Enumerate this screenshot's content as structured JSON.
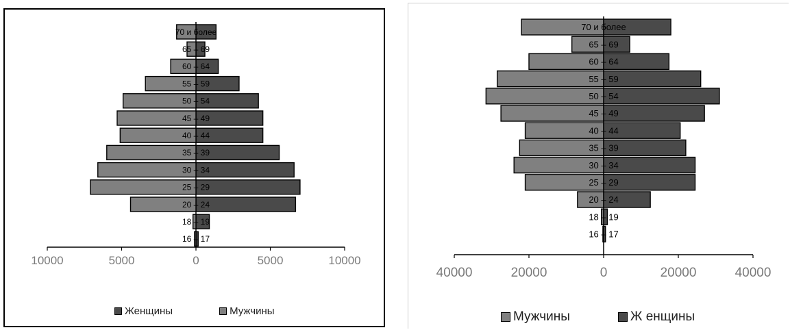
{
  "chart_data": [
    {
      "type": "bar",
      "orientation": "horizontal",
      "layout": "population-pyramid",
      "categories": [
        "70 и более",
        "65 – 69",
        "60 – 64",
        "55 – 59",
        "50 – 54",
        "45 – 49",
        "40 – 44",
        "35 – 39",
        "30 – 34",
        "25 – 29",
        "20 – 24",
        "18 – 19",
        "16 – 17"
      ],
      "series": [
        {
          "name": "Женщины",
          "side": "right",
          "color": "#4a4a4a",
          "values": [
            1350,
            600,
            1500,
            2900,
            4200,
            4500,
            4500,
            5600,
            6600,
            7000,
            6700,
            900,
            150
          ]
        },
        {
          "name": "Мужчины",
          "side": "left",
          "color": "#808080",
          "values": [
            1300,
            600,
            1700,
            3400,
            4900,
            5300,
            5100,
            6000,
            6600,
            7100,
            4400,
            200,
            100
          ]
        }
      ],
      "xlim": [
        -10000,
        10000
      ],
      "x_ticks": [
        {
          "value": -10000,
          "label": "10000"
        },
        {
          "value": -5000,
          "label": "5000"
        },
        {
          "value": 0,
          "label": "0"
        },
        {
          "value": 5000,
          "label": "5000"
        },
        {
          "value": 10000,
          "label": "10000"
        }
      ],
      "tick_label_color": "#7a7a7a",
      "legend": {
        "position": "bottom",
        "entries": [
          "Женщины",
          "Мужчины"
        ]
      },
      "grid": false
    },
    {
      "type": "bar",
      "orientation": "horizontal",
      "layout": "population-pyramid",
      "categories": [
        "70 и более",
        "65 – 69",
        "60 – 64",
        "55 – 59",
        "50 – 54",
        "45 – 49",
        "40 – 44",
        "35 – 39",
        "30 – 34",
        "25 – 29",
        "20 – 24",
        "18 – 19",
        "16 – 17"
      ],
      "series": [
        {
          "name": "Мужчины",
          "side": "left",
          "color": "#808080",
          "values": [
            22000,
            8500,
            20000,
            28500,
            31500,
            27500,
            21000,
            22500,
            24000,
            21000,
            7000,
            600,
            200
          ]
        },
        {
          "name": "Ж енщины",
          "side": "right",
          "color": "#4a4a4a",
          "values": [
            18000,
            7000,
            17500,
            26000,
            31000,
            27000,
            20500,
            22000,
            24500,
            24500,
            12500,
            1000,
            500
          ]
        }
      ],
      "xlim": [
        -40000,
        40000
      ],
      "x_ticks": [
        {
          "value": -40000,
          "label": "40000"
        },
        {
          "value": -20000,
          "label": "20000"
        },
        {
          "value": 0,
          "label": "0"
        },
        {
          "value": 20000,
          "label": "20000"
        },
        {
          "value": 40000,
          "label": "40000"
        }
      ],
      "tick_label_color": "#7a7a7a",
      "legend": {
        "position": "bottom",
        "entries": [
          "Мужчины",
          "Ж енщины"
        ]
      },
      "grid": false
    }
  ]
}
